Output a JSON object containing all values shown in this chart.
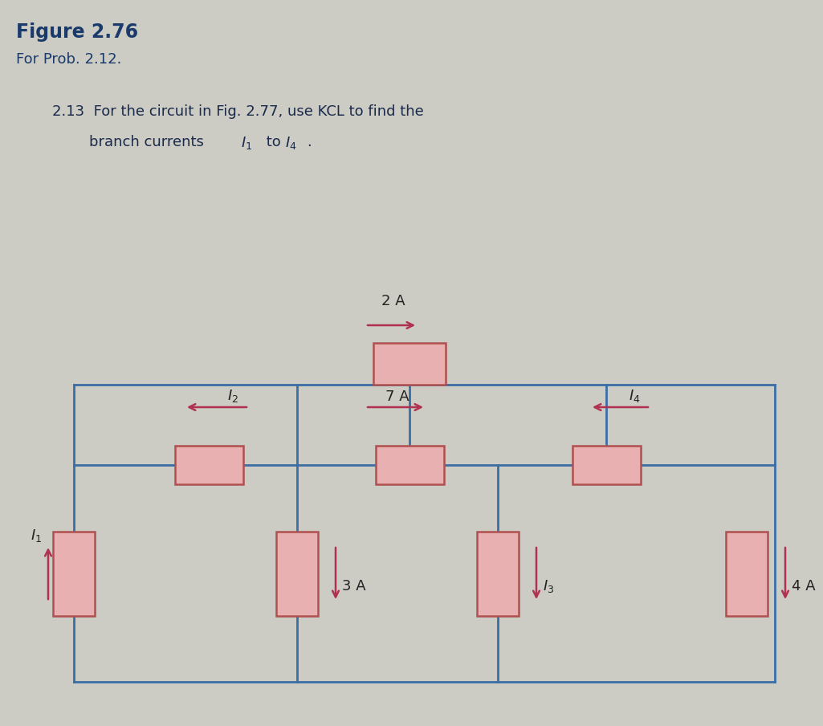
{
  "bg_color": "#cccbc4",
  "figure_title": "Figure 2.76",
  "figure_subtitle": "For Prob. 2.12.",
  "problem_text_line1": "2.13  For the circuit in Fig. 2.77, use KCL to find the",
  "problem_text_line2": "        branch currents ",
  "problem_text_line2b": " to ",
  "title_color": "#1a3a6b",
  "text_color": "#1a2a4a",
  "wire_color": "#3a6ea5",
  "resistor_fill": "#e8b0b0",
  "resistor_edge": "#b05050",
  "arrow_color": "#b03050",
  "current_2A_label": "2 A",
  "current_7A_label": "7 A",
  "current_3A_label": "3 A",
  "current_4A_label": "4 A",
  "current_I1_label": "I_1",
  "current_I2_label": "I_2",
  "current_I3_label": "I_3",
  "current_I4_label": "I_4"
}
